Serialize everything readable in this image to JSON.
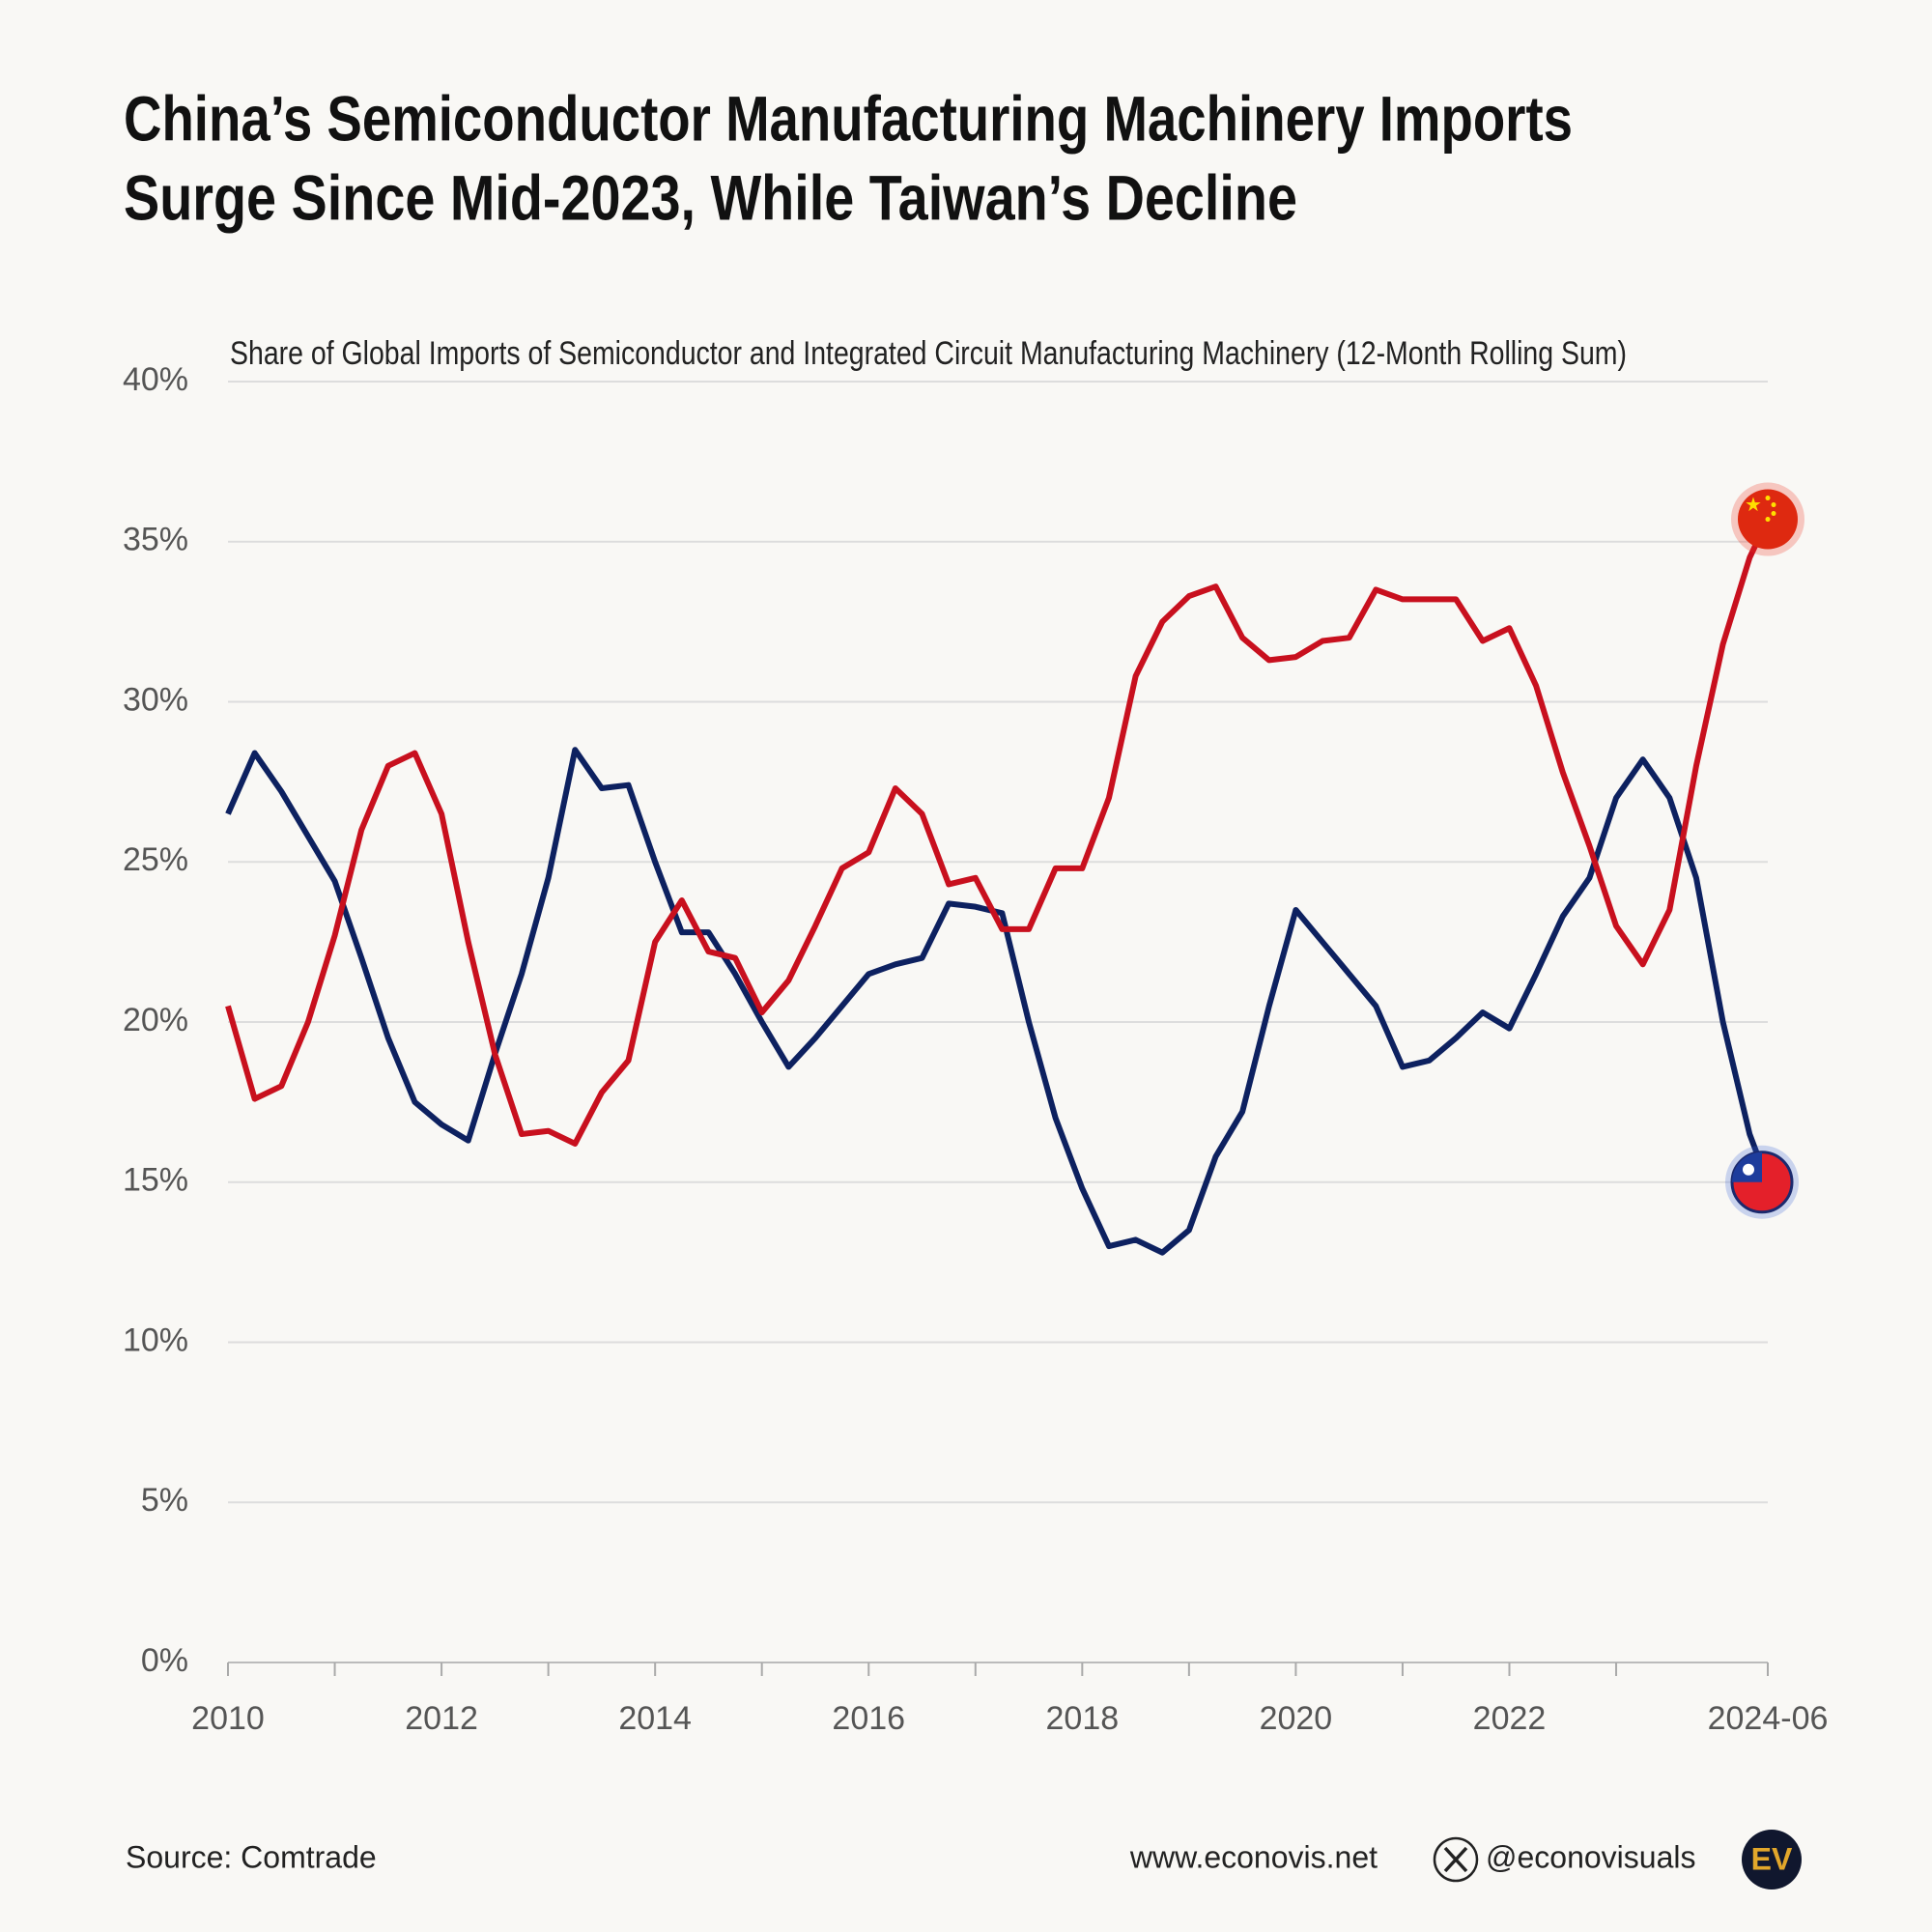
{
  "chart_data": {
    "type": "line",
    "title": [
      "China’s Semiconductor Manufacturing Machinery Imports",
      "Surge Since Mid-2023, While Taiwan’s Decline"
    ],
    "subtitle": "Share of Global Imports of Semiconductor and Integrated Circuit Manufacturing Machinery (12-Month Rolling Sum)",
    "x": [
      2010,
      2010.25,
      2010.5,
      2010.75,
      2011,
      2011.25,
      2011.5,
      2011.75,
      2012,
      2012.25,
      2012.5,
      2012.75,
      2013,
      2013.25,
      2013.5,
      2013.75,
      2014,
      2014.25,
      2014.5,
      2014.75,
      2015,
      2015.25,
      2015.5,
      2015.75,
      2016,
      2016.25,
      2016.5,
      2016.75,
      2017,
      2017.25,
      2017.5,
      2017.75,
      2018,
      2018.25,
      2018.5,
      2018.75,
      2019,
      2019.25,
      2019.5,
      2019.75,
      2020,
      2020.25,
      2020.5,
      2020.75,
      2021,
      2021.25,
      2021.5,
      2021.75,
      2022,
      2022.25,
      2022.5,
      2022.75,
      2023,
      2023.25,
      2023.5,
      2023.75,
      2024,
      2024.25,
      2024.42
    ],
    "series": [
      {
        "color": "#0d2160",
        "values": [
          26.5,
          28.4,
          27.2,
          25.8,
          24.4,
          22.0,
          19.5,
          17.5,
          16.8,
          16.3,
          19.0,
          21.5,
          24.5,
          28.5,
          27.3,
          27.4,
          25.0,
          22.8,
          22.8,
          21.5,
          20.0,
          18.6,
          19.5,
          20.5,
          21.5,
          21.8,
          22.0,
          23.7,
          23.6,
          23.4,
          20.0,
          17.0,
          14.8,
          13.0,
          13.2,
          12.8,
          13.5,
          15.8,
          17.2,
          20.5,
          23.5,
          22.5,
          21.5,
          20.5,
          18.6,
          18.8,
          19.5,
          20.3,
          19.8,
          21.5,
          23.3,
          24.5,
          27.0,
          28.2,
          27.0,
          24.5,
          20.0,
          16.5,
          15.0
        ]
      },
      {
        "color": "#c8101e",
        "values": [
          20.5,
          17.6,
          18.0,
          20.0,
          22.7,
          26.0,
          28.0,
          28.4,
          26.5,
          22.5,
          19.0,
          16.5,
          16.6,
          16.2,
          17.8,
          18.8,
          22.5,
          23.8,
          22.2,
          22.0,
          20.3,
          21.3,
          23.0,
          24.8,
          25.3,
          27.3,
          26.5,
          24.3,
          24.5,
          22.9,
          22.9,
          24.8,
          24.8,
          27.0,
          30.8,
          32.5,
          33.3,
          33.6,
          32.0,
          31.3,
          31.4,
          31.9,
          32.0,
          33.5,
          33.2,
          33.2,
          33.2,
          31.9,
          32.3,
          30.5,
          27.8,
          25.5,
          23.0,
          21.8,
          23.5,
          28.0,
          31.8,
          34.5,
          35.7
        ]
      }
    ],
    "xlim": [
      2010,
      2024.42
    ],
    "xticks": [
      2010,
      2012,
      2014,
      2016,
      2018,
      2020,
      2022,
      {
        "value": 2024.42,
        "label": "2024-06"
      }
    ],
    "xminorticks": [
      2011,
      2013,
      2015,
      2017,
      2019,
      2021,
      2023
    ],
    "ylim": [
      0,
      40
    ],
    "yticks": [
      {
        "value": 0,
        "label": "0%"
      },
      {
        "value": 5,
        "label": "5%"
      },
      {
        "value": 10,
        "label": "10%"
      },
      {
        "value": 15,
        "label": "15%"
      },
      {
        "value": 20,
        "label": "20%"
      },
      {
        "value": 25,
        "label": "25%"
      },
      {
        "value": 30,
        "label": "30%"
      },
      {
        "value": 35,
        "label": "35%"
      },
      {
        "value": 40,
        "label": "40%"
      }
    ],
    "grid": true,
    "source": "Source: Comtrade",
    "website": "www.econovis.net",
    "handle": "@econovisuals",
    "logo": "EV"
  }
}
